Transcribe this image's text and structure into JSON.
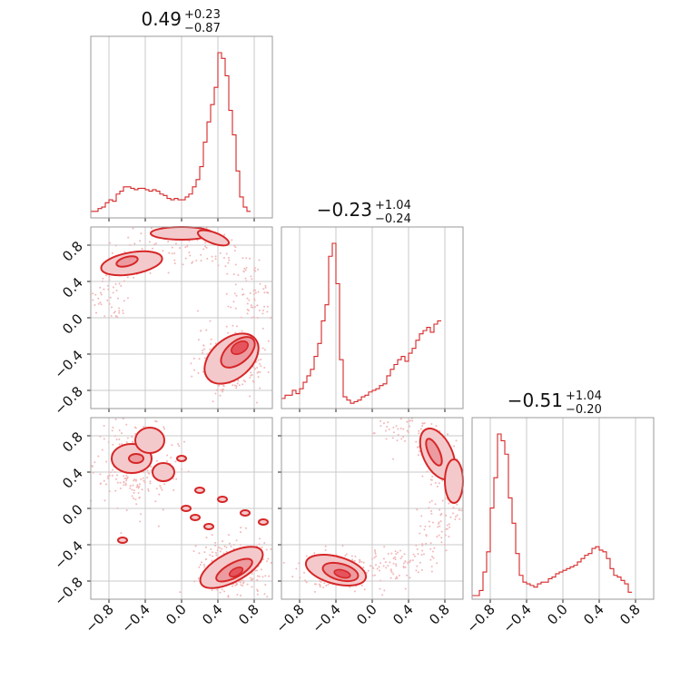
{
  "colors": {
    "accent": "#d62728",
    "fill_light": "#f4c9cb",
    "fill_mid": "#ec9ba0",
    "fill_dark": "#e5545d",
    "scatter": "#f2b7b9"
  },
  "chart_data": {
    "type": "corner",
    "range": [
      -1,
      1
    ],
    "ticks": [
      -0.8,
      -0.4,
      0.0,
      0.4,
      0.8
    ],
    "tick_labels": [
      "−0.8",
      "−0.4",
      "0.0",
      "0.4",
      "0.8"
    ],
    "grid": true,
    "titles": [
      {
        "value": "0.49",
        "plus": "+0.23",
        "minus": "−0.87"
      },
      {
        "value": "−0.23",
        "plus": "+1.04",
        "minus": "−0.24"
      },
      {
        "value": "−0.51",
        "plus": "+1.04",
        "minus": "−0.20"
      }
    ],
    "histograms": [
      {
        "bin_width": 0.04,
        "x_start": -1.0,
        "counts": [
          2,
          2,
          4,
          5,
          8,
          10,
          9,
          14,
          16,
          19,
          19,
          18,
          17,
          18,
          18,
          17,
          16,
          17,
          16,
          14,
          13,
          11,
          10,
          11,
          10,
          10,
          12,
          14,
          19,
          24,
          33,
          50,
          64,
          76,
          88,
          112,
          108,
          96,
          72,
          55,
          30,
          12,
          5,
          2
        ]
      },
      {
        "bin_width": 0.04,
        "x_start": -1.0,
        "counts": [
          4,
          6,
          6,
          9,
          7,
          10,
          14,
          18,
          22,
          30,
          38,
          52,
          62,
          92,
          100,
          75,
          28,
          5,
          3,
          1,
          2,
          3,
          5,
          6,
          8,
          9,
          10,
          12,
          13,
          18,
          22,
          25,
          28,
          30,
          27,
          32,
          35,
          40,
          44,
          46,
          48,
          45,
          50,
          52
        ]
      },
      {
        "bin_width": 0.04,
        "x_start": -1.0,
        "counts": [
          0,
          0,
          3,
          14,
          26,
          52,
          70,
          96,
          92,
          84,
          58,
          43,
          25,
          12,
          8,
          7,
          6,
          5,
          7,
          8,
          8,
          10,
          11,
          13,
          14,
          15,
          16,
          17,
          18,
          20,
          22,
          24,
          25,
          28,
          29,
          27,
          26,
          22,
          16,
          12,
          11,
          9,
          7,
          2
        ]
      }
    ],
    "regions_2d": [
      {
        "panel": "x1_vs_x0",
        "centers": [
          [
            0.6,
            -0.4
          ],
          [
            -0.6,
            0.55
          ]
        ]
      },
      {
        "panel": "x2_vs_x0",
        "centers": [
          [
            0.6,
            -0.68
          ],
          [
            -0.5,
            0.55
          ]
        ]
      },
      {
        "panel": "x2_vs_x1",
        "centers": [
          [
            -0.35,
            -0.72
          ],
          [
            0.8,
            0.5
          ]
        ]
      }
    ]
  }
}
